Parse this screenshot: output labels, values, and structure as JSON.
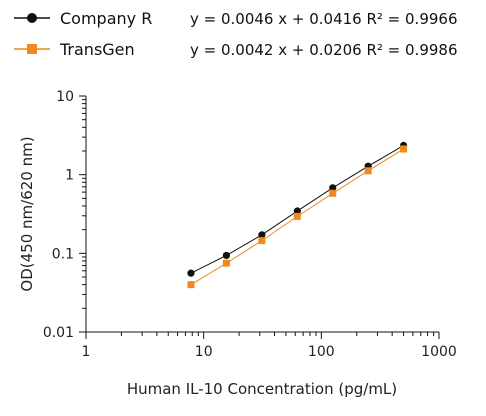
{
  "chart_data": {
    "type": "line",
    "xscale": "log",
    "yscale": "log",
    "xlim": [
      1,
      1000
    ],
    "ylim": [
      0.01,
      10
    ],
    "xlabel": "Human IL-10 Concentration (pg/mL)",
    "ylabel": "OD(450 nm/620 nm)",
    "x_ticks": [
      "1",
      "10",
      "100",
      "1000"
    ],
    "y_ticks": [
      "0.01",
      "0.1",
      "1",
      "10"
    ],
    "grid": false,
    "legend_position": "top-left",
    "series": [
      {
        "name": "Company R",
        "equation": "y = 0.0046 x + 0.0416 R² = 0.9966",
        "color": "#111111",
        "marker": "circle",
        "x": [
          7.8,
          15.6,
          31.25,
          62.5,
          125,
          250,
          500
        ],
        "y": [
          0.056,
          0.094,
          0.172,
          0.345,
          0.68,
          1.28,
          2.35
        ]
      },
      {
        "name": "TransGen",
        "equation": "y = 0.0042 x + 0.0206  R² = 0.9986",
        "color": "#f08a1c",
        "marker": "square",
        "x": [
          7.8,
          15.6,
          31.25,
          62.5,
          125,
          250,
          500
        ],
        "y": [
          0.04,
          0.075,
          0.145,
          0.295,
          0.58,
          1.12,
          2.12
        ]
      }
    ]
  }
}
